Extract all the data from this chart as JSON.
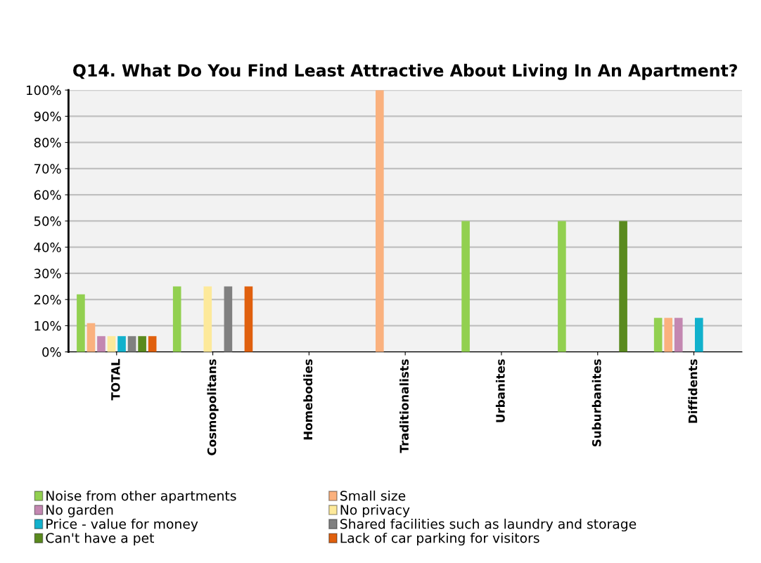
{
  "chart_data": {
    "type": "bar",
    "title": "Q14. What Do You Find Least Attractive About Living In An Apartment?",
    "categories": [
      "TOTAL",
      "Cosmopolitans",
      "Homebodies",
      "Traditionalists",
      "Urbanites",
      "Suburbanites",
      "Diffidents"
    ],
    "series": [
      {
        "name": "Noise from other apartments",
        "color": "#92d050",
        "values": [
          22,
          25,
          0,
          0,
          50,
          50,
          13
        ]
      },
      {
        "name": "Small size",
        "color": "#fab17e",
        "values": [
          11,
          0,
          0,
          100,
          0,
          0,
          13
        ]
      },
      {
        "name": "No garden",
        "color": "#c387b1",
        "values": [
          6,
          0,
          0,
          0,
          0,
          0,
          13
        ]
      },
      {
        "name": "No privacy",
        "color": "#fde99a",
        "values": [
          6,
          25,
          0,
          0,
          0,
          0,
          0
        ]
      },
      {
        "name": "Price - value for money",
        "color": "#12b1cc",
        "values": [
          6,
          0,
          0,
          0,
          0,
          0,
          13
        ]
      },
      {
        "name": "Shared facilities such as laundry and storage",
        "color": "#808080",
        "values": [
          6,
          25,
          0,
          0,
          0,
          0,
          0
        ]
      },
      {
        "name": "Can't have a pet",
        "color": "#5a8a1e",
        "values": [
          6,
          0,
          0,
          0,
          0,
          50,
          0
        ]
      },
      {
        "name": "Lack of car parking for visitors",
        "color": "#e0600e",
        "values": [
          6,
          25,
          0,
          0,
          0,
          0,
          0
        ]
      }
    ],
    "ylim": [
      0,
      100
    ],
    "yticks": [
      {
        "value": 0,
        "label": "0%"
      },
      {
        "value": 10,
        "label": "10%"
      },
      {
        "value": 20,
        "label": "20%"
      },
      {
        "value": 30,
        "label": "30%"
      },
      {
        "value": 40,
        "label": "40%"
      },
      {
        "value": 50,
        "label": "50%"
      },
      {
        "value": 60,
        "label": "60%"
      },
      {
        "value": 70,
        "label": "70%"
      },
      {
        "value": 80,
        "label": "80%"
      },
      {
        "value": 90,
        "label": "90%"
      },
      {
        "value": 100,
        "label": "100%"
      }
    ],
    "grid": "y",
    "legend": "bottom"
  }
}
